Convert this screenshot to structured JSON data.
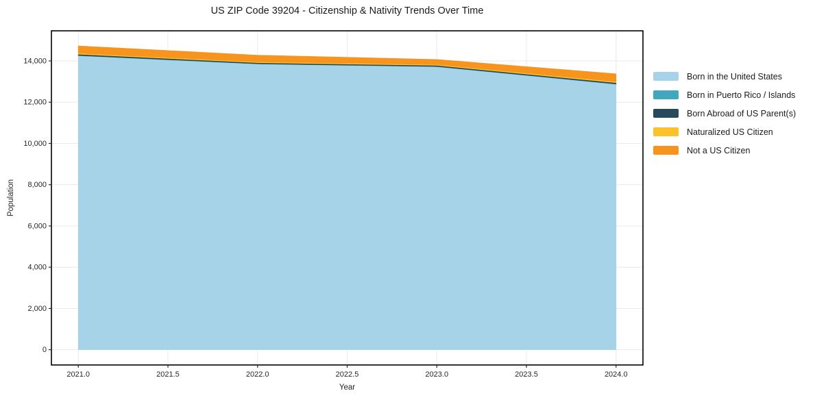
{
  "page": {
    "title": "US ZIP Code 39204 - Citizenship & Nativity Trends Over Time"
  },
  "chart_data": {
    "type": "area",
    "stacked": true,
    "title": "US ZIP Code 39204 - Citizenship & Nativity Trends Over Time",
    "xlabel": "Year",
    "ylabel": "Population",
    "x": [
      2021,
      2022,
      2023,
      2024
    ],
    "series": [
      {
        "name": "Born in the United States",
        "color": "#a7d3e8",
        "values": [
          14250,
          13850,
          13720,
          12870
        ]
      },
      {
        "name": "Born in Puerto Rico / Islands",
        "color": "#41a7be",
        "values": [
          15,
          12,
          12,
          15
        ]
      },
      {
        "name": "Born Abroad of US Parent(s)",
        "color": "#27495c",
        "values": [
          60,
          50,
          50,
          60
        ]
      },
      {
        "name": "Naturalized US Citizen",
        "color": "#fcc22d",
        "values": [
          45,
          40,
          40,
          50
        ]
      },
      {
        "name": "Not a US Citizen",
        "color": "#f7941e",
        "values": [
          360,
          330,
          250,
          380
        ]
      }
    ],
    "totals": [
      14730,
      14282,
      14072,
      13375
    ],
    "xticks": [
      2021.0,
      2021.5,
      2022.0,
      2022.5,
      2023.0,
      2023.5,
      2024.0
    ],
    "xtick_labels": [
      "2021.0",
      "2021.5",
      "2022.0",
      "2022.5",
      "2023.0",
      "2023.5",
      "2024.0"
    ],
    "yticks": [
      0,
      2000,
      4000,
      6000,
      8000,
      10000,
      12000,
      14000
    ],
    "ytick_labels": [
      "0",
      "2,000",
      "4,000",
      "6,000",
      "8,000",
      "10,000",
      "12,000",
      "14,000"
    ],
    "xlim": [
      2020.85,
      2024.15
    ],
    "ylim": [
      -740,
      15460
    ],
    "grid": true,
    "legend_position": "right-outside"
  },
  "colors": {
    "grid": "#e9e9e9",
    "spine": "#000000",
    "tick": "#262626",
    "text": "#1a1a1a",
    "background": "#ffffff"
  }
}
